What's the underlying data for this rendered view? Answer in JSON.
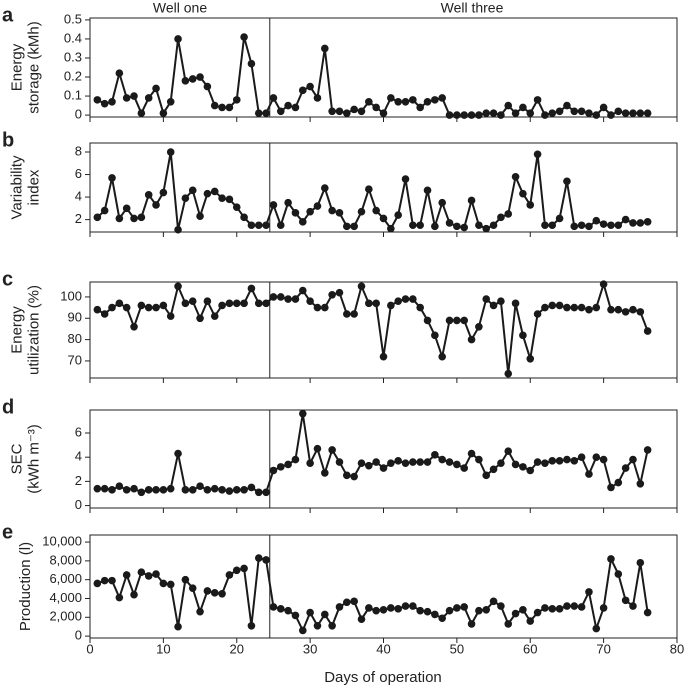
{
  "chart_data": {
    "type": "line",
    "annotations": [
      "Well one",
      "Well three"
    ],
    "divider_x": 24.5,
    "xlabel": "Days of operation",
    "xlim": [
      0,
      80
    ],
    "xticks": [
      0,
      10,
      20,
      30,
      40,
      50,
      60,
      70,
      80
    ],
    "color": "#1a1a1a",
    "x": [
      1,
      2,
      3,
      4,
      5,
      6,
      7,
      8,
      9,
      10,
      11,
      12,
      13,
      14,
      15,
      16,
      17,
      18,
      19,
      20,
      21,
      22,
      23,
      24,
      25,
      26,
      27,
      28,
      29,
      30,
      31,
      32,
      33,
      34,
      35,
      36,
      37,
      38,
      39,
      40,
      41,
      42,
      43,
      44,
      45,
      46,
      47,
      48,
      49,
      50,
      51,
      52,
      53,
      54,
      55,
      56,
      57,
      58,
      59,
      60,
      61,
      62,
      63,
      64,
      65,
      66,
      67,
      68,
      69,
      70,
      71,
      72,
      73,
      74,
      75,
      76
    ],
    "panels": [
      {
        "letter": "a",
        "ylabel": [
          "Energy",
          "storage (kMh)"
        ],
        "ylim": [
          -0.01,
          0.51
        ],
        "yticks": [
          0,
          0.1,
          0.2,
          0.3,
          0.4,
          0.5
        ],
        "values": [
          0.08,
          0.06,
          0.07,
          0.22,
          0.09,
          0.1,
          0.01,
          0.09,
          0.14,
          0.01,
          0.07,
          0.4,
          0.18,
          0.19,
          0.2,
          0.15,
          0.05,
          0.04,
          0.04,
          0.08,
          0.41,
          0.27,
          0.01,
          0.01,
          0.09,
          0.02,
          0.05,
          0.04,
          0.13,
          0.15,
          0.09,
          0.35,
          0.02,
          0.02,
          0.01,
          0.03,
          0.02,
          0.07,
          0.04,
          0.01,
          0.09,
          0.07,
          0.07,
          0.08,
          0.04,
          0.07,
          0.08,
          0.09,
          0,
          0,
          0,
          0,
          0,
          0.01,
          0.01,
          0,
          0.05,
          0.01,
          0.04,
          0.01,
          0.08,
          0,
          0.01,
          0.02,
          0.05,
          0.02,
          0.02,
          0.01,
          0,
          0.04,
          0,
          0.02,
          0.01,
          0.01,
          0.01,
          0.01
        ]
      },
      {
        "letter": "b",
        "ylabel": [
          "Variability",
          "index"
        ],
        "ylim": [
          0.9,
          8.8
        ],
        "yticks": [
          2,
          4,
          6,
          8
        ],
        "values": [
          2.2,
          2.8,
          5.7,
          2.1,
          3.0,
          2.1,
          2.2,
          4.2,
          3.3,
          4.4,
          8.0,
          1.1,
          3.9,
          4.6,
          2.3,
          4.3,
          4.5,
          3.9,
          3.8,
          3.1,
          2.2,
          1.5,
          1.5,
          1.5,
          3.3,
          1.5,
          3.5,
          2.6,
          1.8,
          2.7,
          3.2,
          4.8,
          2.8,
          2.6,
          1.4,
          1.4,
          2.7,
          4.7,
          2.8,
          2.1,
          1.2,
          2.4,
          5.6,
          1.5,
          1.5,
          4.6,
          1.4,
          3.5,
          1.7,
          1.4,
          1.3,
          3.7,
          1.5,
          1.2,
          1.5,
          2.2,
          2.5,
          5.8,
          4.3,
          3.3,
          7.8,
          1.5,
          1.5,
          2.1,
          5.4,
          1.4,
          1.5,
          1.4,
          1.9,
          1.6,
          1.5,
          1.5,
          2.0,
          1.7,
          1.7,
          1.8
        ]
      },
      {
        "letter": "c",
        "ylabel": [
          "Energy",
          "utilization (%)"
        ],
        "ylim": [
          62,
          107
        ],
        "yticks": [
          70,
          80,
          90,
          100
        ],
        "values": [
          94,
          92,
          95,
          97,
          95,
          86,
          96,
          95,
          95,
          96,
          91,
          105,
          97,
          98,
          90,
          98,
          91,
          96,
          97,
          97,
          97,
          104,
          97,
          97,
          100,
          100,
          99,
          99,
          103,
          98,
          95,
          95,
          101,
          102,
          92,
          92,
          105,
          97,
          97,
          72,
          96,
          98,
          99,
          99,
          95,
          89,
          82,
          72,
          89,
          89,
          89,
          80,
          86,
          99,
          96,
          98,
          64,
          97,
          82,
          71,
          92,
          95,
          96,
          96,
          95,
          95,
          95,
          94,
          95,
          106,
          94,
          94,
          93,
          94,
          93,
          84
        ]
      },
      {
        "letter": "d",
        "ylabel": [
          "SEC",
          "(kWh m⁻³)"
        ],
        "ylim": [
          -0.2,
          7.9
        ],
        "yticks": [
          0,
          2,
          4,
          6
        ],
        "values": [
          1.4,
          1.4,
          1.3,
          1.6,
          1.3,
          1.4,
          1.1,
          1.3,
          1.3,
          1.3,
          1.4,
          4.3,
          1.3,
          1.3,
          1.6,
          1.3,
          1.4,
          1.3,
          1.2,
          1.3,
          1.3,
          1.5,
          1.1,
          1.1,
          2.9,
          3.2,
          3.4,
          3.8,
          7.6,
          3.5,
          4.7,
          2.7,
          4.6,
          3.6,
          2.5,
          2.4,
          3.5,
          3.3,
          3.6,
          3.1,
          3.5,
          3.7,
          3.5,
          3.6,
          3.6,
          3.6,
          4.2,
          3.8,
          3.6,
          3.4,
          3.1,
          4.3,
          3.8,
          2.5,
          3.0,
          3.5,
          4.5,
          3.4,
          3.2,
          2.9,
          3.6,
          3.5,
          3.7,
          3.7,
          3.8,
          3.7,
          4.0,
          2.6,
          4.0,
          3.8,
          1.5,
          1.9,
          3.1,
          3.8,
          1.8,
          4.6
        ]
      },
      {
        "letter": "e",
        "ylabel": [
          "Production (l)"
        ],
        "ylim": [
          -200,
          10750
        ],
        "yticks": [
          0,
          {
            "value": 2000,
            "label": "2,000"
          },
          {
            "value": 4000,
            "label": "4,000"
          },
          {
            "value": 6000,
            "label": "6,000"
          },
          {
            "value": 8000,
            "label": "8,000"
          },
          {
            "value": 10000,
            "label": "10,000"
          }
        ],
        "values": [
          5600,
          5900,
          5900,
          4100,
          6500,
          4400,
          6800,
          6400,
          6600,
          5600,
          5500,
          1000,
          6000,
          5100,
          2600,
          4800,
          4600,
          4500,
          6500,
          7000,
          7200,
          1100,
          8300,
          8100,
          3100,
          2900,
          2700,
          2200,
          600,
          2500,
          1100,
          2300,
          1100,
          3100,
          3600,
          3700,
          1800,
          3000,
          2700,
          2800,
          3000,
          2900,
          3200,
          3200,
          2700,
          2600,
          2300,
          1900,
          2700,
          3000,
          3100,
          1300,
          2700,
          2800,
          3700,
          3200,
          1300,
          2400,
          2800,
          1600,
          2500,
          3000,
          2900,
          2900,
          3200,
          3200,
          3100,
          4700,
          800,
          3000,
          8200,
          6600,
          3800,
          3200,
          7800,
          2500
        ]
      }
    ]
  }
}
